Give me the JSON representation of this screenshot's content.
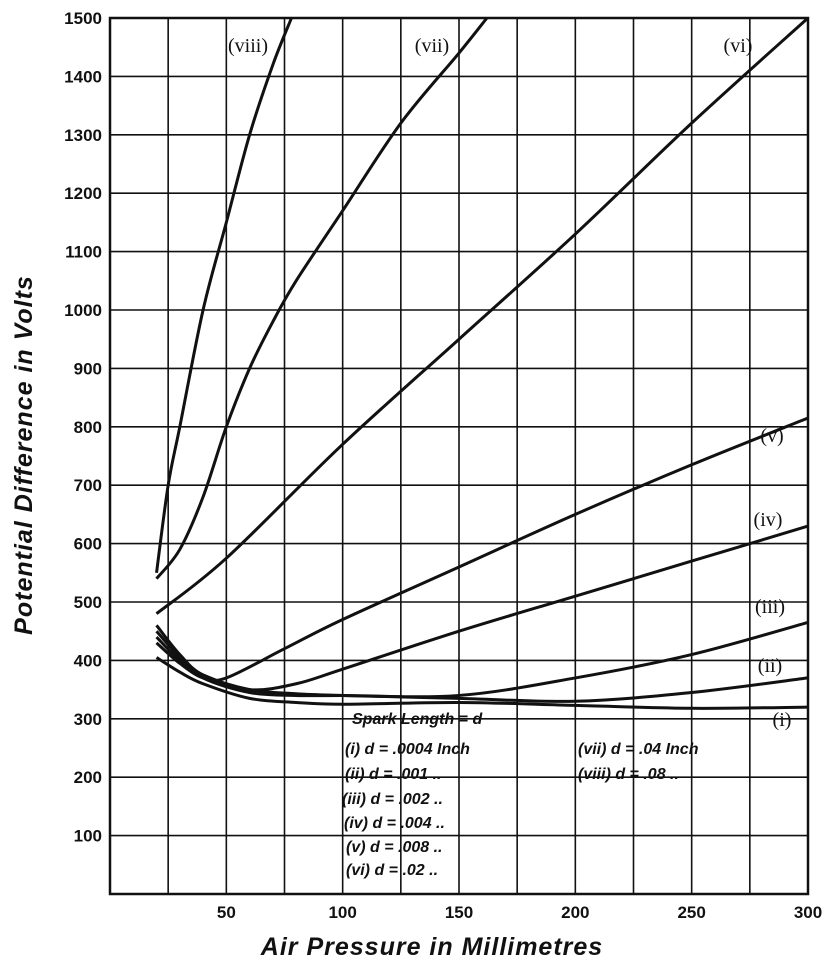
{
  "chart_data": {
    "type": "line",
    "title": "",
    "xlabel": "Air Pressure in Millimetres",
    "ylabel": "Potential Difference in Volts",
    "xlim": [
      0,
      300
    ],
    "ylim": [
      0,
      1500
    ],
    "xticks": [
      50,
      100,
      150,
      200,
      250,
      300
    ],
    "yticks": [
      100,
      200,
      300,
      400,
      500,
      600,
      700,
      800,
      900,
      1000,
      1100,
      1200,
      1300,
      1400,
      1500
    ],
    "grid": true,
    "grid_x_step": 25,
    "grid_y_step": 100,
    "series": [
      {
        "name": "(i)",
        "x": [
          20,
          30,
          40,
          60,
          80,
          100,
          150,
          200,
          250,
          300
        ],
        "y": [
          405,
          380,
          360,
          335,
          328,
          325,
          328,
          323,
          318,
          320
        ]
      },
      {
        "name": "(ii)",
        "x": [
          20,
          30,
          40,
          60,
          80,
          100,
          150,
          200,
          250,
          300
        ],
        "y": [
          460,
          410,
          375,
          350,
          343,
          340,
          335,
          330,
          345,
          370
        ]
      },
      {
        "name": "(iii)",
        "x": [
          20,
          30,
          40,
          60,
          80,
          100,
          150,
          200,
          250,
          300
        ],
        "y": [
          450,
          405,
          370,
          345,
          340,
          340,
          340,
          370,
          410,
          465
        ]
      },
      {
        "name": "(iv)",
        "x": [
          20,
          30,
          40,
          60,
          80,
          100,
          150,
          200,
          250,
          300
        ],
        "y": [
          440,
          400,
          375,
          350,
          360,
          385,
          450,
          510,
          570,
          630
        ]
      },
      {
        "name": "(v)",
        "x": [
          20,
          30,
          40,
          50,
          75,
          100,
          150,
          200,
          250,
          300
        ],
        "y": [
          430,
          395,
          370,
          370,
          420,
          470,
          560,
          650,
          735,
          815
        ]
      },
      {
        "name": "(vi)",
        "x": [
          20,
          50,
          100,
          150,
          200,
          250,
          300
        ],
        "y": [
          480,
          575,
          770,
          950,
          1130,
          1320,
          1500
        ]
      },
      {
        "name": "(vii)",
        "x": [
          20,
          30,
          40,
          50,
          60,
          70,
          80,
          100,
          125,
          150,
          162
        ],
        "y": [
          540,
          590,
          680,
          800,
          900,
          980,
          1050,
          1170,
          1320,
          1440,
          1500
        ]
      },
      {
        "name": "(viii)",
        "x": [
          20,
          25,
          30,
          40,
          50,
          60,
          70,
          78
        ],
        "y": [
          550,
          700,
          800,
          1000,
          1150,
          1300,
          1420,
          1500
        ]
      }
    ],
    "legend": {
      "title": "Spark Length = d",
      "placement": "bottom-center",
      "entries": [
        "(i) d = .0004 Inch",
        "(ii) d = .001 ..",
        "(iii) d = .002 ..",
        "(iv) d = .004 ..",
        "(v) d = .008 ..",
        "(vi) d = .02 ..",
        "(vii) d = .04 Inch",
        "(viii) d = .08 .."
      ]
    },
    "line_color": "#111111"
  }
}
